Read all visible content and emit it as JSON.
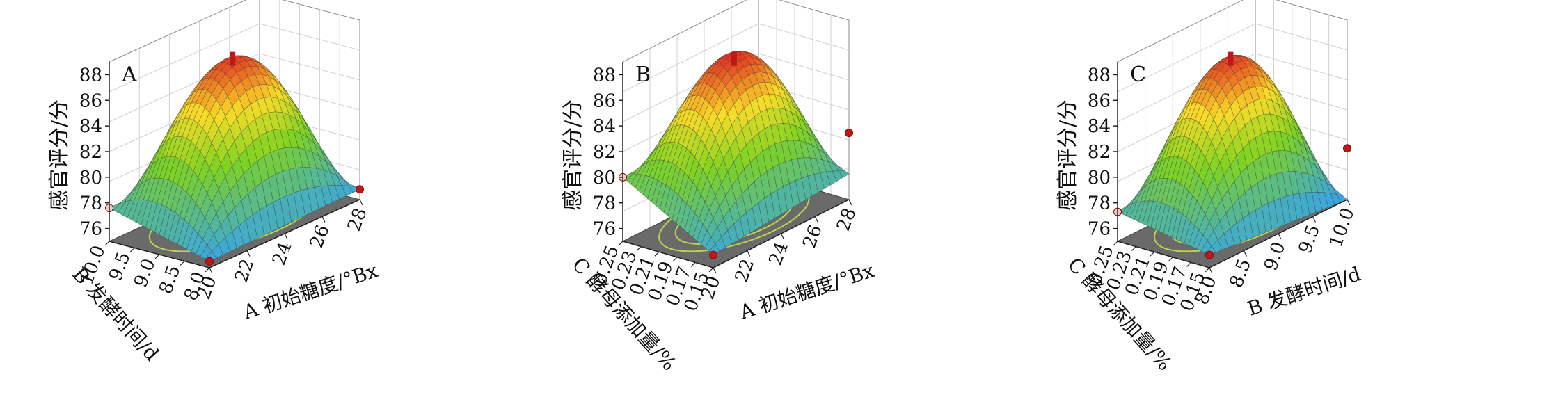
{
  "chart_data": [
    {
      "type": "surface3d",
      "panel_label": "A",
      "zlabel": "感官评分/分",
      "zticks": [
        "76",
        "78",
        "80",
        "82",
        "84",
        "86",
        "88"
      ],
      "zlim": [
        75,
        89
      ],
      "x_axis": {
        "label": "A 初始糖度/°Bx",
        "ticks": [
          "20",
          "22",
          "24",
          "26",
          "28"
        ],
        "range": [
          20,
          28
        ]
      },
      "y_axis": {
        "label": "B 发酵时间/d",
        "ticks": [
          "8.0",
          "8.5",
          "9.0",
          "9.5",
          "10.0"
        ],
        "range": [
          8.0,
          10.0
        ]
      },
      "surface": {
        "center": 87.6,
        "corner_values": [
          75.5,
          77.6,
          75.8,
          78.0
        ]
      },
      "design_points": [
        77.6,
        75.8,
        87.4
      ]
    },
    {
      "type": "surface3d",
      "panel_label": "B",
      "zlabel": "感官评分/分",
      "zticks": [
        "76",
        "78",
        "80",
        "82",
        "84",
        "86",
        "88"
      ],
      "zlim": [
        75,
        89
      ],
      "x_axis": {
        "label": "A 初始糖度/°Bx",
        "ticks": [
          "20",
          "22",
          "24",
          "26",
          "28"
        ],
        "range": [
          20,
          28
        ]
      },
      "y_axis": {
        "label": "C 酵母添加量/%",
        "ticks": [
          "0.15",
          "0.17",
          "0.19",
          "0.21",
          "0.23",
          "0.25"
        ],
        "range": [
          0.15,
          0.25
        ]
      },
      "surface": {
        "center": 87.8,
        "corner_values": [
          76.0,
          80.0,
          77.0,
          80.2
        ]
      },
      "design_points": [
        80.0,
        80.2,
        87.4
      ]
    },
    {
      "type": "surface3d",
      "panel_label": "C",
      "zlabel": "感官评分/分",
      "zticks": [
        "76",
        "78",
        "80",
        "82",
        "84",
        "86",
        "88"
      ],
      "zlim": [
        75,
        89
      ],
      "x_axis": {
        "label": "B 发酵时间/d",
        "ticks": [
          "8.0",
          "8.5",
          "9.0",
          "9.5",
          "10.0"
        ],
        "range": [
          8.0,
          10.0
        ]
      },
      "y_axis": {
        "label": "C 酵母添加量/%",
        "ticks": [
          "0.15",
          "0.17",
          "0.19",
          "0.21",
          "0.23",
          "0.25"
        ],
        "range": [
          0.15,
          0.25
        ]
      },
      "surface": {
        "center": 87.6,
        "corner_values": [
          76.0,
          77.3,
          75.0,
          79.0
        ]
      },
      "design_points": [
        77.3,
        79.0,
        87.4
      ]
    }
  ],
  "colors": {
    "low": "#3aa6e0",
    "mid": "#7ed321",
    "high": "#e02020",
    "floor": "#6a6a6a",
    "contour_inner": "#e8902c",
    "contour_outer": "#b8d84a",
    "point": "#c0181a"
  }
}
